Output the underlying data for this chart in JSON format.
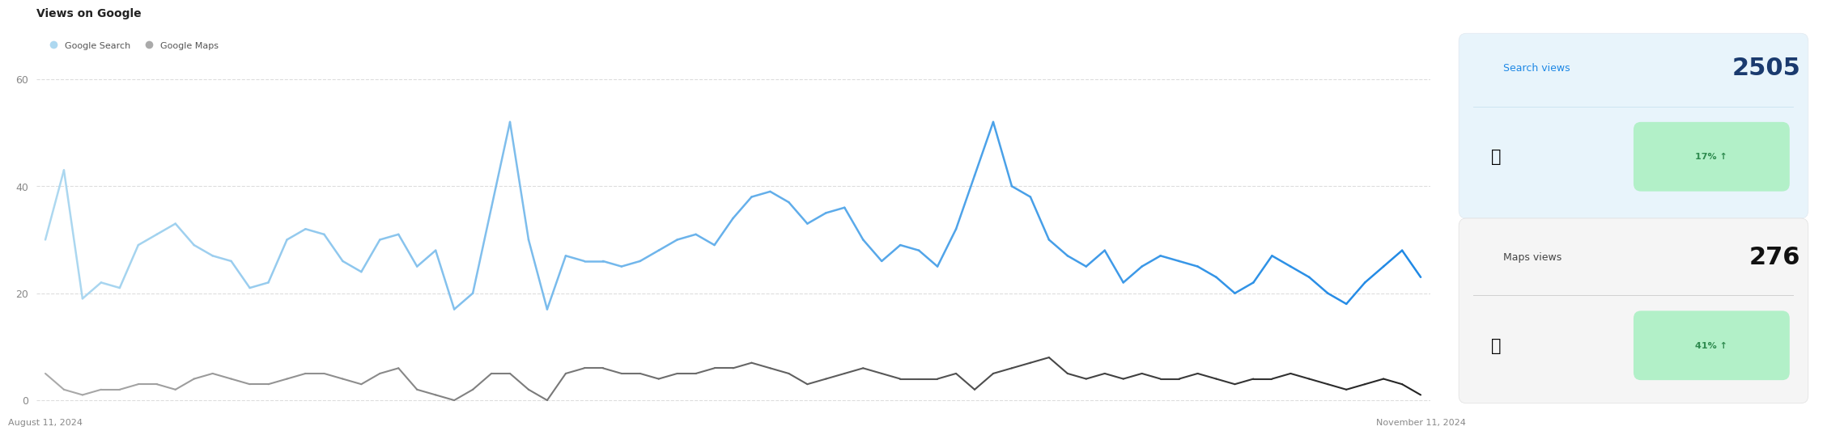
{
  "title": "Views on Google",
  "legend_labels": [
    "Google Search",
    "Google Maps"
  ],
  "x_start_label": "August 11, 2024",
  "x_end_label": "November 11, 2024",
  "y_ticks": [
    0,
    20,
    40,
    60
  ],
  "search_views": [
    30,
    43,
    19,
    22,
    21,
    29,
    31,
    33,
    29,
    27,
    26,
    21,
    22,
    30,
    32,
    31,
    26,
    24,
    30,
    31,
    25,
    28,
    17,
    20,
    36,
    52,
    30,
    17,
    27,
    26,
    26,
    25,
    26,
    28,
    30,
    31,
    29,
    34,
    38,
    39,
    37,
    33,
    35,
    36,
    30,
    26,
    29,
    28,
    25,
    32,
    42,
    52,
    40,
    38,
    30,
    27,
    25,
    28,
    22,
    25,
    27,
    26,
    25,
    23,
    20,
    22,
    27,
    25,
    23,
    20,
    18,
    22,
    25,
    28,
    23
  ],
  "maps_views": [
    5,
    2,
    1,
    2,
    2,
    3,
    3,
    2,
    4,
    5,
    4,
    3,
    3,
    4,
    5,
    5,
    4,
    3,
    5,
    6,
    2,
    1,
    0,
    2,
    5,
    5,
    2,
    0,
    5,
    6,
    6,
    5,
    5,
    4,
    5,
    5,
    6,
    6,
    7,
    6,
    5,
    3,
    4,
    5,
    6,
    5,
    4,
    4,
    4,
    5,
    2,
    5,
    6,
    7,
    8,
    5,
    4,
    5,
    4,
    5,
    4,
    4,
    5,
    4,
    3,
    4,
    4,
    5,
    4,
    3,
    2,
    3,
    4,
    3,
    1
  ],
  "search_color_early": "#add8f0",
  "search_color_late": "#1e88e5",
  "maps_color_early": "#aaaaaa",
  "maps_color_late": "#222222",
  "background_color": "#ffffff",
  "grid_color": "#dddddd",
  "card_bg_search": "#e8f4fb",
  "card_bg_maps": "#f5f5f5",
  "search_total": "2505",
  "maps_total": "276",
  "search_pct": "17% ↑",
  "maps_pct": "41% ↑",
  "search_views_label": "Search views",
  "maps_views_label": "Maps views",
  "pct_bg_color": "#b2f0c8"
}
